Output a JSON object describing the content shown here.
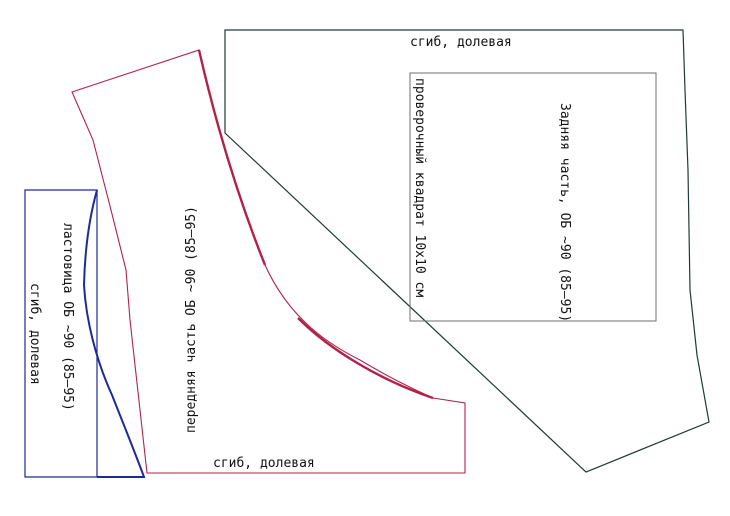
{
  "colors": {
    "back": "#1f3a36",
    "front": "#b0224a",
    "gusset": "#1d2a9a",
    "square": "#6f6f6f",
    "text": "#111111"
  },
  "labels": {
    "back_fold": "сгиб, долевая",
    "back_piece": "Задняя часть, ОБ ~90 (85–95)",
    "test_square": "проверочный квадрат 10х10 см",
    "front_piece": "передняя часть ОБ ~90 (85–95)",
    "front_fold": "сгиб, долевая",
    "gusset_piece": "ластовица ОБ ~90 (85–95)",
    "gusset_fold": "сгиб, долевая"
  }
}
